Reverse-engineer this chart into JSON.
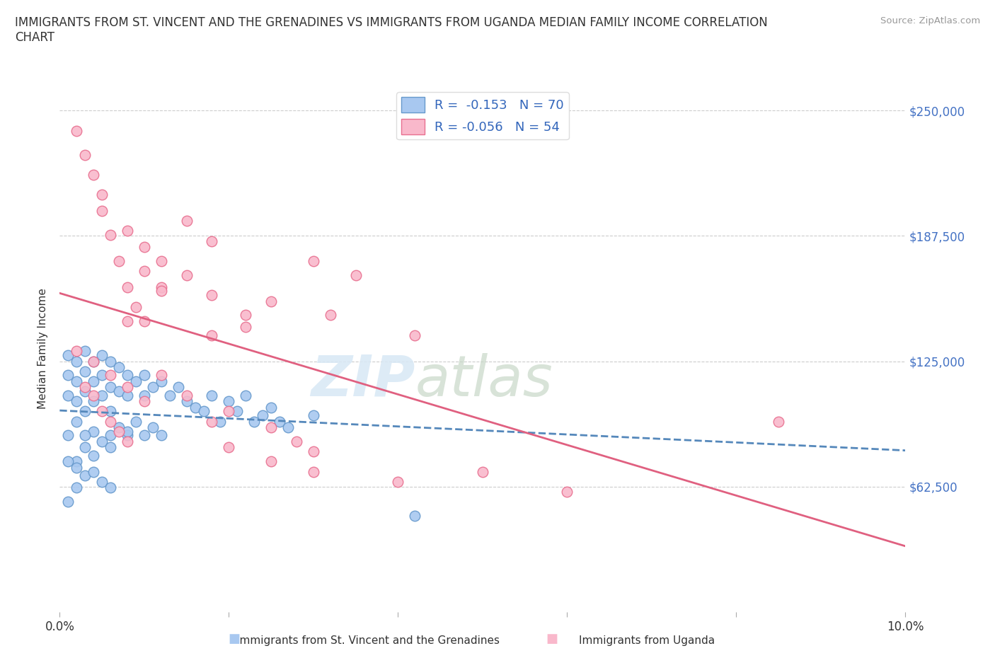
{
  "title": "IMMIGRANTS FROM ST. VINCENT AND THE GRENADINES VS IMMIGRANTS FROM UGANDA MEDIAN FAMILY INCOME CORRELATION\nCHART",
  "source": "Source: ZipAtlas.com",
  "ylabel": "Median Family Income",
  "xlim": [
    0.0,
    0.1
  ],
  "ylim": [
    0,
    262500
  ],
  "yticks": [
    0,
    62500,
    125000,
    187500,
    250000
  ],
  "ytick_labels": [
    "",
    "$62,500",
    "$125,000",
    "$187,500",
    "$250,000"
  ],
  "xticks": [
    0.0,
    0.02,
    0.04,
    0.06,
    0.08,
    0.1
  ],
  "xtick_labels": [
    "0.0%",
    "",
    "",
    "",
    "",
    "10.0%"
  ],
  "blue_color": "#A8C8F0",
  "pink_color": "#F9B8CB",
  "blue_edge_color": "#6699CC",
  "pink_edge_color": "#E87090",
  "blue_line_color": "#5588BB",
  "pink_line_color": "#E06080",
  "watermark_zip": "ZIP",
  "watermark_atlas": "atlas",
  "legend_R1": "R =  -0.153   N = 70",
  "legend_R2": "R = -0.056   N = 54",
  "legend_label1": "Immigrants from St. Vincent and the Grenadines",
  "legend_label2": "Immigrants from Uganda",
  "blue_scatter_x": [
    0.001,
    0.001,
    0.001,
    0.001,
    0.002,
    0.002,
    0.002,
    0.002,
    0.002,
    0.003,
    0.003,
    0.003,
    0.003,
    0.003,
    0.004,
    0.004,
    0.004,
    0.004,
    0.005,
    0.005,
    0.005,
    0.005,
    0.006,
    0.006,
    0.006,
    0.006,
    0.007,
    0.007,
    0.007,
    0.008,
    0.008,
    0.008,
    0.009,
    0.009,
    0.01,
    0.01,
    0.01,
    0.011,
    0.011,
    0.012,
    0.012,
    0.013,
    0.014,
    0.015,
    0.016,
    0.017,
    0.018,
    0.019,
    0.02,
    0.021,
    0.022,
    0.023,
    0.024,
    0.025,
    0.026,
    0.027,
    0.001,
    0.002,
    0.003,
    0.003,
    0.004,
    0.005,
    0.006,
    0.001,
    0.002,
    0.004,
    0.006,
    0.008,
    0.03,
    0.042
  ],
  "blue_scatter_y": [
    128000,
    118000,
    108000,
    88000,
    125000,
    115000,
    105000,
    95000,
    75000,
    130000,
    120000,
    110000,
    100000,
    82000,
    125000,
    115000,
    105000,
    90000,
    128000,
    118000,
    108000,
    85000,
    125000,
    112000,
    100000,
    88000,
    122000,
    110000,
    92000,
    118000,
    108000,
    88000,
    115000,
    95000,
    118000,
    108000,
    88000,
    112000,
    92000,
    115000,
    88000,
    108000,
    112000,
    105000,
    102000,
    100000,
    108000,
    95000,
    105000,
    100000,
    108000,
    95000,
    98000,
    102000,
    95000,
    92000,
    75000,
    72000,
    88000,
    68000,
    70000,
    65000,
    62000,
    55000,
    62000,
    78000,
    82000,
    90000,
    98000,
    48000
  ],
  "pink_scatter_x": [
    0.015,
    0.018,
    0.03,
    0.035,
    0.01,
    0.012,
    0.025,
    0.032,
    0.008,
    0.012,
    0.018,
    0.022,
    0.042,
    0.005,
    0.008,
    0.01,
    0.012,
    0.015,
    0.018,
    0.022,
    0.002,
    0.003,
    0.004,
    0.005,
    0.006,
    0.007,
    0.008,
    0.009,
    0.01,
    0.003,
    0.004,
    0.005,
    0.006,
    0.007,
    0.008,
    0.012,
    0.015,
    0.02,
    0.025,
    0.028,
    0.02,
    0.025,
    0.03,
    0.04,
    0.05,
    0.06,
    0.085,
    0.002,
    0.004,
    0.006,
    0.008,
    0.01,
    0.018,
    0.03
  ],
  "pink_scatter_y": [
    195000,
    185000,
    175000,
    168000,
    170000,
    162000,
    155000,
    148000,
    145000,
    160000,
    138000,
    142000,
    138000,
    200000,
    190000,
    182000,
    175000,
    168000,
    158000,
    148000,
    240000,
    228000,
    218000,
    208000,
    188000,
    175000,
    162000,
    152000,
    145000,
    112000,
    108000,
    100000,
    95000,
    90000,
    85000,
    118000,
    108000,
    100000,
    92000,
    85000,
    82000,
    75000,
    70000,
    65000,
    70000,
    60000,
    95000,
    130000,
    125000,
    118000,
    112000,
    105000,
    95000,
    80000
  ]
}
